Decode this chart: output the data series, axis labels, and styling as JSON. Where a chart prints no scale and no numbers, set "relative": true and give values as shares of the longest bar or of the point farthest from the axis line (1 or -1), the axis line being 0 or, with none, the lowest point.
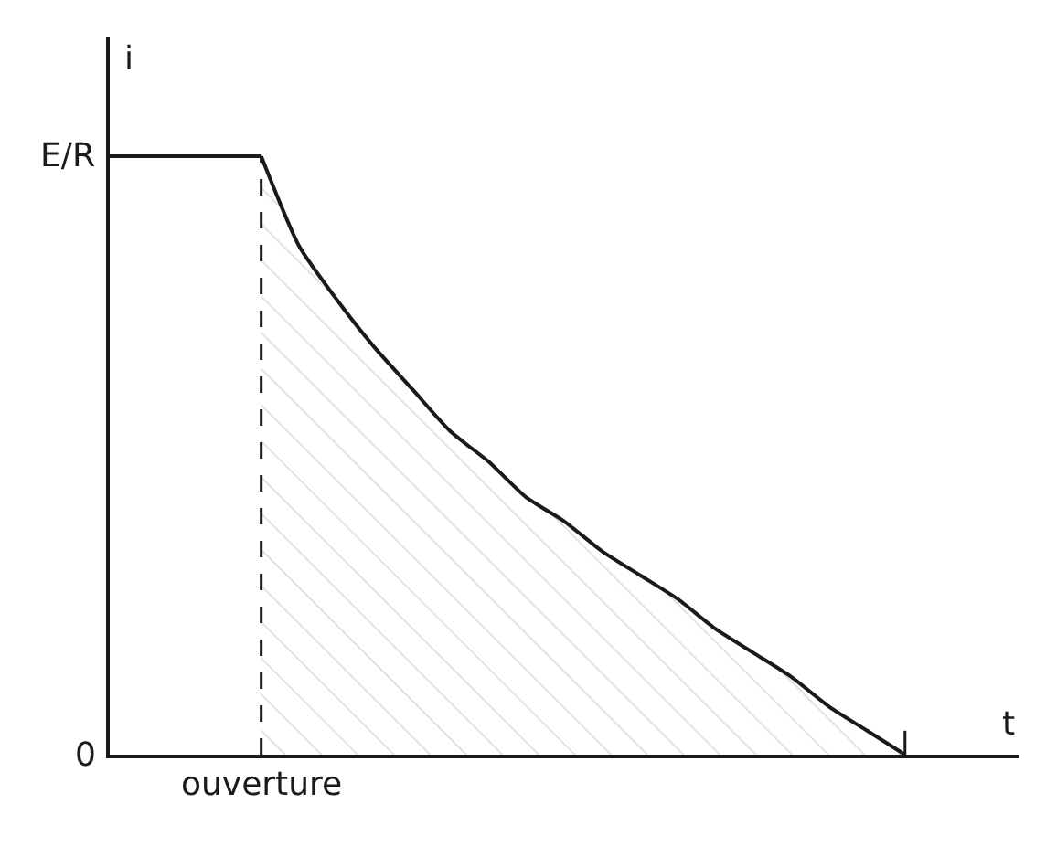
{
  "chart_data": {
    "type": "line",
    "relative": true,
    "xlabel": "t",
    "ylabel": "i",
    "categories": [
      null,
      null,
      null,
      null,
      null,
      null,
      null,
      null,
      null,
      null,
      null,
      null,
      null,
      null,
      null,
      null,
      null,
      null,
      null,
      null,
      null,
      null,
      null,
      null,
      null
    ],
    "series": [
      {
        "color": "#1a1a1a",
        "values": [
          1,
          1,
          1,
          1,
          1,
          null,
          null,
          null,
          null,
          null,
          null,
          null,
          null,
          null,
          null,
          null,
          null,
          null,
          null,
          null,
          null,
          null,
          null,
          null,
          null
        ]
      },
      {
        "type": "area",
        "color": "#1a1a1a",
        "values": [
          null,
          null,
          null,
          null,
          1,
          0.85,
          0.76,
          0.68,
          0.61,
          0.54,
          0.49,
          0.43,
          0.39,
          0.34,
          0.3,
          0.26,
          0.21,
          0.17,
          0.13,
          0.08,
          0.04,
          0,
          null,
          null,
          null
        ]
      }
    ],
    "annotations": [
      "E/R",
      "0",
      "ouverture"
    ],
    "legend": false
  }
}
